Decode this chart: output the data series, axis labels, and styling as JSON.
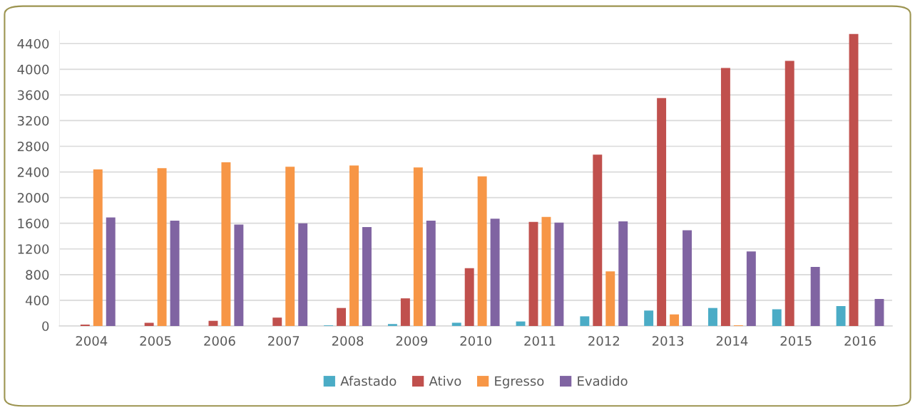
{
  "chart_data": {
    "type": "bar",
    "categories": [
      "2004",
      "2005",
      "2006",
      "2007",
      "2008",
      "2009",
      "2010",
      "2011",
      "2012",
      "2013",
      "2014",
      "2015",
      "2016"
    ],
    "series": [
      {
        "name": "Afastado",
        "color": "#4bacc6",
        "values": [
          0,
          0,
          0,
          0,
          10,
          30,
          50,
          70,
          150,
          240,
          280,
          260,
          310
        ]
      },
      {
        "name": "Ativo",
        "color": "#c0504d",
        "values": [
          20,
          50,
          80,
          130,
          280,
          430,
          900,
          1620,
          2670,
          3550,
          4020,
          4130,
          4550
        ]
      },
      {
        "name": "Egresso",
        "color": "#f79646",
        "values": [
          2440,
          2460,
          2550,
          2480,
          2500,
          2470,
          2330,
          1700,
          850,
          180,
          10,
          0,
          0
        ]
      },
      {
        "name": "Evadido",
        "color": "#8064a2",
        "values": [
          1690,
          1640,
          1580,
          1600,
          1540,
          1640,
          1670,
          1610,
          1630,
          1490,
          1160,
          920,
          420
        ]
      }
    ],
    "ylim": [
      0,
      4600
    ],
    "yticks": [
      0,
      400,
      800,
      1200,
      1600,
      2000,
      2400,
      2800,
      3200,
      3600,
      4000,
      4400
    ],
    "grid": "y",
    "legend": "bottom"
  }
}
